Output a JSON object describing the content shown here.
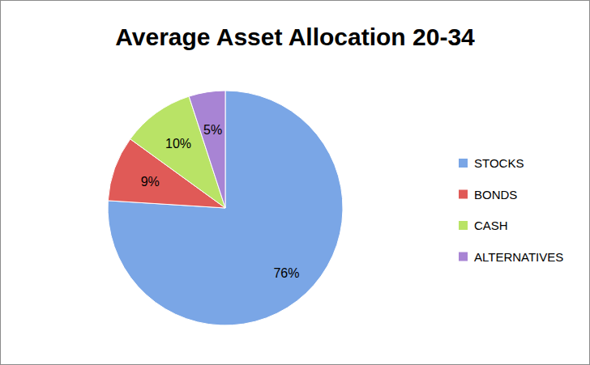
{
  "chart_data": {
    "type": "pie",
    "title": "Average Asset Allocation 20-34",
    "categories": [
      "STOCKS",
      "BONDS",
      "CASH",
      "ALTERNATIVES"
    ],
    "values": [
      76,
      9,
      10,
      5
    ],
    "value_labels": [
      "76%",
      "9%",
      "10%",
      "5%"
    ],
    "colors": [
      "#7aa6e6",
      "#e05a57",
      "#b9e366",
      "#a884d4"
    ],
    "data_labels": true,
    "legend": "right"
  }
}
